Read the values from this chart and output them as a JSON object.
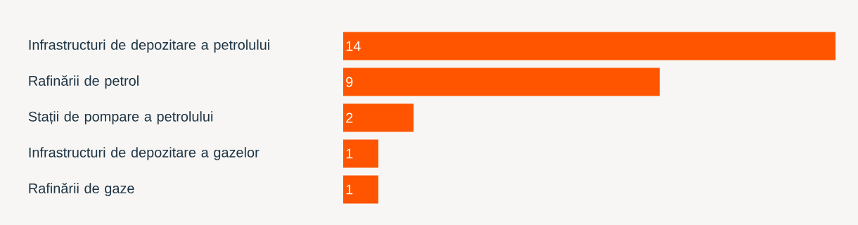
{
  "chart_data": {
    "type": "bar",
    "orientation": "horizontal",
    "categories": [
      "Infrastructuri de depozitare a petrolului",
      "Rafinării de petrol",
      "Stații de pompare a petrolului",
      "Infrastructuri de depozitare a gazelor",
      "Rafinării de gaze"
    ],
    "values": [
      14,
      9,
      2,
      1,
      1
    ],
    "color": "#ff5500",
    "data_labels": true
  }
}
